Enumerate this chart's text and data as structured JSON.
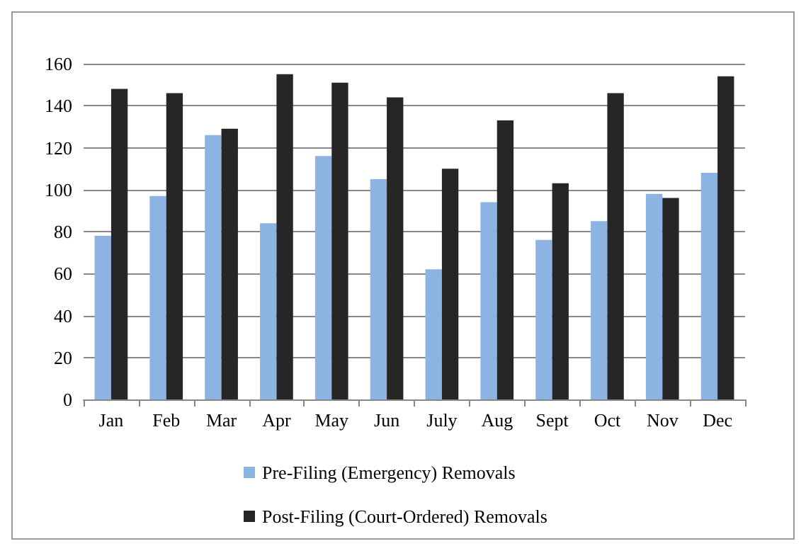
{
  "chart_data": {
    "type": "bar",
    "categories": [
      "Jan",
      "Feb",
      "Mar",
      "Apr",
      "May",
      "Jun",
      "July",
      "Aug",
      "Sept",
      "Oct",
      "Nov",
      "Dec"
    ],
    "series": [
      {
        "name": "Pre-Filing (Emergency) Removals",
        "color": "#8db3e2",
        "values": [
          78,
          97,
          126,
          84,
          116,
          105,
          62,
          94,
          76,
          85,
          98,
          108
        ]
      },
      {
        "name": "Post-Filing (Court-Ordered) Removals",
        "color": "#262626",
        "values": [
          148,
          146,
          129,
          155,
          151,
          144,
          110,
          133,
          103,
          146,
          96,
          154
        ]
      }
    ],
    "ylim": [
      0,
      160
    ],
    "yticks": [
      0,
      20,
      40,
      60,
      80,
      100,
      120,
      140,
      160
    ],
    "grid": "y",
    "legend": "bottom"
  }
}
